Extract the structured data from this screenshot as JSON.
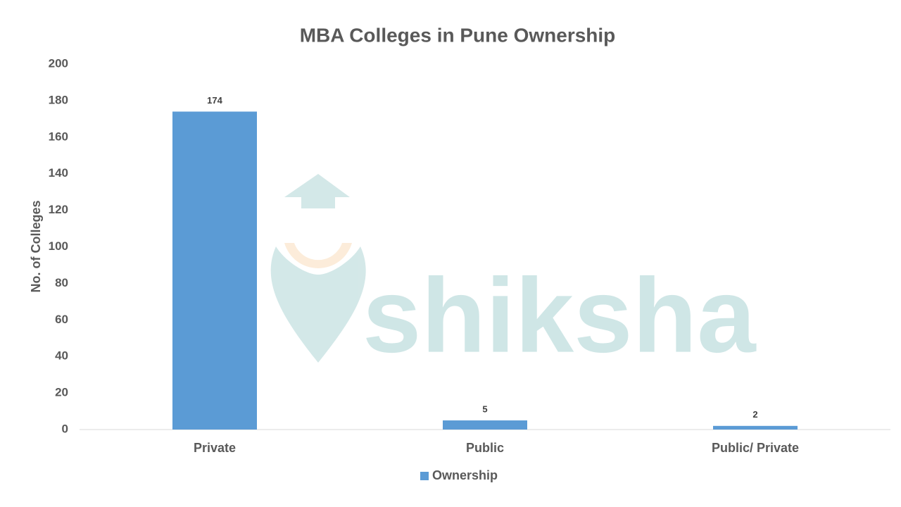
{
  "chart_data": {
    "type": "bar",
    "title": "MBA Colleges in Pune Ownership",
    "y_label": "No. of Colleges",
    "categories": [
      "Private",
      "Public",
      "Public/ Private"
    ],
    "series": [
      {
        "name": "Ownership",
        "color": "#5b9bd5",
        "values": [
          174,
          5,
          2
        ]
      }
    ],
    "ylim": [
      0,
      200
    ],
    "yticks": [
      0,
      20,
      40,
      60,
      80,
      100,
      120,
      140,
      160,
      180,
      200
    ],
    "grid": false,
    "legend": "bottom",
    "watermark": "shiksha"
  }
}
